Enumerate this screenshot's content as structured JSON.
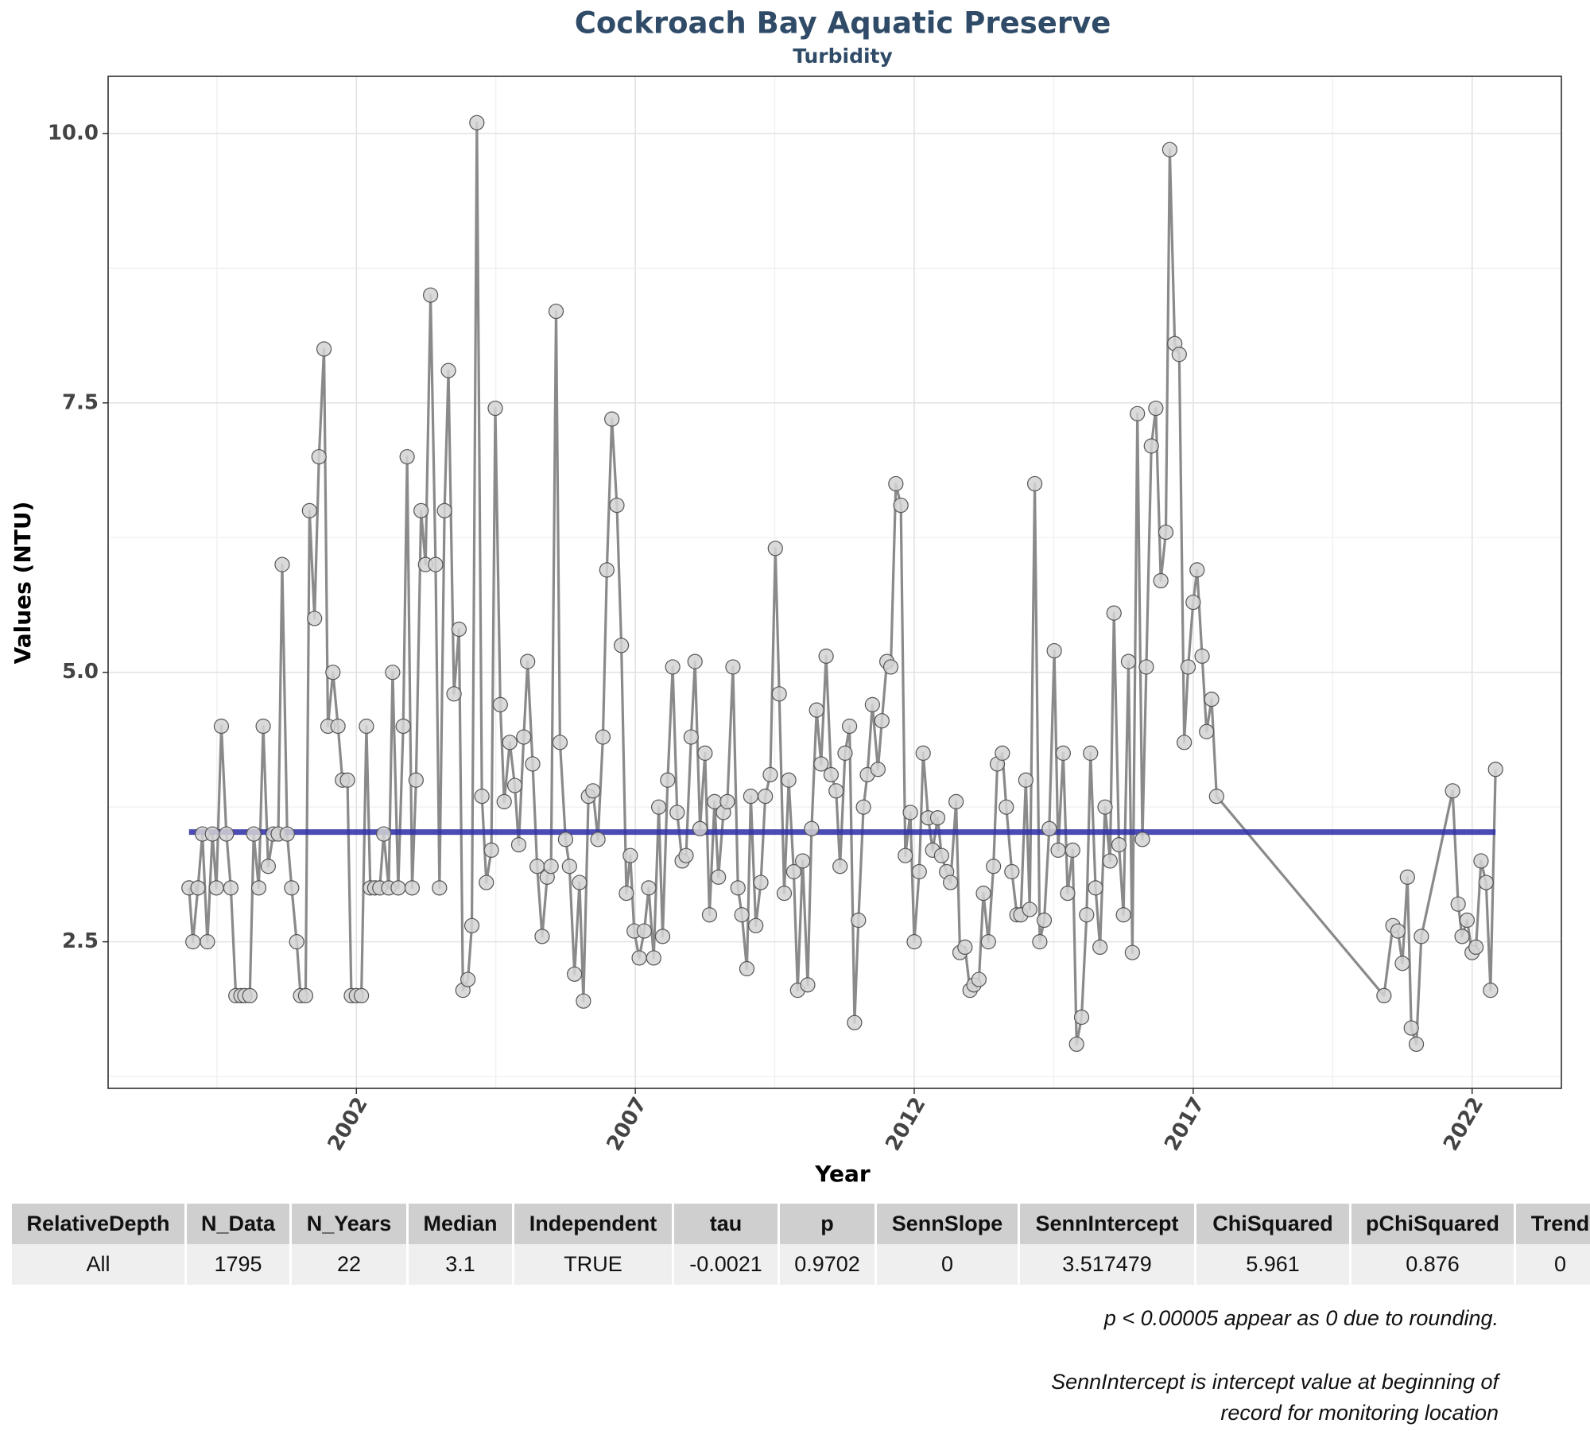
{
  "chart_data": {
    "type": "line",
    "title": "Cockroach Bay Aquatic Preserve",
    "subtitle": "Turbidity",
    "x_label": "Year",
    "y_label": "Values (NTU)",
    "xlim": [
      1997.55,
      2023.6
    ],
    "ylim": [
      1.14,
      10.53
    ],
    "xticks": [
      2002,
      2007,
      2012,
      2017,
      2022
    ],
    "yticks": [
      2.5,
      {
        "value": 5,
        "label": "5.0"
      },
      7.5,
      {
        "value": 10,
        "label": "10.0"
      }
    ],
    "grid": true,
    "line_color": "#8a8a8a",
    "point_color": "#d3d3d3",
    "trend_color": "#2b2ba8",
    "x": [
      1999.0,
      1999.07,
      1999.16,
      1999.24,
      1999.33,
      1999.42,
      1999.49,
      1999.58,
      1999.67,
      1999.75,
      1999.84,
      1999.93,
      2000.0,
      2000.09,
      2000.16,
      2000.25,
      2000.33,
      2000.42,
      2000.51,
      2000.6,
      2000.67,
      2000.76,
      2000.84,
      2000.93,
      2001.0,
      2001.09,
      2001.16,
      2001.25,
      2001.33,
      2001.42,
      2001.49,
      2001.58,
      2001.67,
      2001.75,
      2001.84,
      2001.91,
      2002.0,
      2002.09,
      2002.18,
      2002.25,
      2002.33,
      2002.42,
      2002.49,
      2002.58,
      2002.65,
      2002.75,
      2002.84,
      2002.91,
      2003.0,
      2003.07,
      2003.16,
      2003.24,
      2003.33,
      2003.42,
      2003.49,
      2003.58,
      2003.65,
      2003.75,
      2003.84,
      2003.91,
      2004.0,
      2004.07,
      2004.16,
      2004.25,
      2004.33,
      2004.42,
      2004.49,
      2004.58,
      2004.65,
      2004.75,
      2004.84,
      2004.91,
      2005.0,
      2005.07,
      2005.16,
      2005.24,
      2005.33,
      2005.42,
      2005.49,
      2005.58,
      2005.65,
      2005.75,
      2005.82,
      2005.91,
      2006.0,
      2006.07,
      2006.16,
      2006.24,
      2006.33,
      2006.42,
      2006.49,
      2006.58,
      2006.67,
      2006.75,
      2006.84,
      2006.91,
      2006.98,
      2007.07,
      2007.16,
      2007.24,
      2007.33,
      2007.42,
      2007.49,
      2007.58,
      2007.67,
      2007.75,
      2007.84,
      2007.91,
      2008.0,
      2008.07,
      2008.16,
      2008.25,
      2008.33,
      2008.42,
      2008.49,
      2008.58,
      2008.65,
      2008.75,
      2008.84,
      2008.91,
      2009.0,
      2009.07,
      2009.16,
      2009.25,
      2009.33,
      2009.42,
      2009.51,
      2009.58,
      2009.67,
      2009.75,
      2009.84,
      2009.91,
      2010.0,
      2010.09,
      2010.16,
      2010.25,
      2010.33,
      2010.42,
      2010.51,
      2010.6,
      2010.67,
      2010.76,
      2010.84,
      2010.93,
      2011.0,
      2011.09,
      2011.16,
      2011.25,
      2011.35,
      2011.42,
      2011.51,
      2011.58,
      2011.67,
      2011.76,
      2011.84,
      2011.93,
      2012.0,
      2012.09,
      2012.16,
      2012.25,
      2012.33,
      2012.42,
      2012.49,
      2012.58,
      2012.65,
      2012.75,
      2012.82,
      2012.91,
      2013.0,
      2013.07,
      2013.16,
      2013.24,
      2013.33,
      2013.42,
      2013.49,
      2013.58,
      2013.65,
      2013.75,
      2013.84,
      2013.91,
      2014.0,
      2014.07,
      2014.16,
      2014.25,
      2014.33,
      2014.42,
      2014.51,
      2014.58,
      2014.67,
      2014.75,
      2014.84,
      2014.91,
      2015.0,
      2015.09,
      2015.16,
      2015.25,
      2015.33,
      2015.42,
      2015.51,
      2015.58,
      2015.67,
      2015.75,
      2015.84,
      2015.91,
      2016.0,
      2016.09,
      2016.16,
      2016.25,
      2016.33,
      2016.42,
      2016.51,
      2016.58,
      2016.67,
      2016.75,
      2016.84,
      2016.91,
      2017.0,
      2017.07,
      2017.16,
      2017.24,
      2017.33,
      2017.42,
      2020.42,
      2020.58,
      2020.67,
      2020.75,
      2020.84,
      2020.91,
      2021.0,
      2021.09,
      2021.65,
      2021.75,
      2021.82,
      2021.91,
      2022.0,
      2022.07,
      2022.16,
      2022.25,
      2022.33,
      2022.42
    ],
    "values": [
      3.0,
      2.5,
      3.0,
      3.5,
      2.5,
      3.5,
      3.0,
      4.5,
      3.5,
      3.0,
      2.0,
      2.0,
      2.0,
      2.0,
      3.5,
      3.0,
      4.5,
      3.2,
      3.5,
      3.5,
      6.0,
      3.5,
      3.0,
      2.5,
      2.0,
      2.0,
      6.5,
      5.5,
      7.0,
      8.0,
      4.5,
      5.0,
      4.5,
      4.0,
      4.0,
      2.0,
      2.0,
      2.0,
      4.5,
      3.0,
      3.0,
      3.0,
      3.5,
      3.0,
      5.0,
      3.0,
      4.5,
      7.0,
      3.0,
      4.0,
      6.5,
      6.0,
      8.5,
      6.0,
      3.0,
      6.5,
      7.8,
      4.8,
      5.4,
      2.05,
      2.15,
      2.65,
      10.1,
      3.85,
      3.05,
      3.35,
      7.45,
      4.7,
      3.8,
      4.35,
      3.95,
      3.4,
      4.4,
      5.1,
      4.15,
      3.2,
      2.55,
      3.1,
      3.2,
      8.35,
      4.35,
      3.45,
      3.2,
      2.2,
      3.05,
      1.95,
      3.85,
      3.9,
      3.45,
      4.4,
      5.95,
      7.35,
      6.55,
      5.25,
      2.95,
      3.3,
      2.6,
      2.35,
      2.6,
      3.0,
      2.35,
      3.75,
      2.55,
      4.0,
      5.05,
      3.7,
      3.25,
      3.3,
      4.4,
      5.1,
      3.55,
      4.25,
      2.75,
      3.8,
      3.1,
      3.7,
      3.8,
      5.05,
      3.0,
      2.75,
      2.25,
      3.85,
      2.65,
      3.05,
      3.85,
      4.05,
      6.15,
      4.8,
      2.95,
      4.0,
      3.15,
      2.05,
      3.25,
      2.1,
      3.55,
      4.65,
      4.15,
      5.15,
      4.05,
      3.9,
      3.2,
      4.25,
      4.5,
      1.75,
      2.7,
      3.75,
      4.05,
      4.7,
      4.1,
      4.55,
      5.1,
      5.05,
      6.75,
      6.55,
      3.3,
      3.7,
      2.5,
      3.15,
      4.25,
      3.65,
      3.35,
      3.65,
      3.3,
      3.15,
      3.05,
      3.8,
      2.4,
      2.45,
      2.05,
      2.1,
      2.15,
      2.95,
      2.5,
      3.2,
      4.15,
      4.25,
      3.75,
      3.15,
      2.75,
      2.75,
      4.0,
      2.8,
      6.75,
      2.5,
      2.7,
      3.55,
      5.2,
      3.35,
      4.25,
      2.95,
      3.35,
      1.55,
      1.8,
      2.75,
      4.25,
      3.0,
      2.45,
      3.75,
      3.25,
      5.55,
      3.4,
      2.75,
      5.1,
      2.4,
      7.4,
      3.45,
      5.05,
      7.1,
      7.45,
      5.85,
      6.3,
      9.85,
      8.05,
      7.95,
      4.35,
      5.05,
      5.65,
      5.95,
      5.15,
      4.45,
      4.75,
      3.85,
      2.0,
      2.65,
      2.6,
      2.3,
      3.1,
      1.7,
      1.55,
      2.55,
      3.9,
      2.85,
      2.55,
      2.7,
      2.4,
      2.45,
      3.25,
      3.05,
      2.05,
      4.1
    ]
  },
  "table": {
    "columns": [
      "RelativeDepth",
      "N_Data",
      "N_Years",
      "Median",
      "Independent",
      "tau",
      "p",
      "SennSlope",
      "SennIntercept",
      "ChiSquared",
      "pChiSquared",
      "Trend"
    ],
    "rows": [
      [
        "All",
        1795,
        22,
        3.1,
        "TRUE",
        -0.0021,
        0.9702,
        0,
        3.517479,
        5.961,
        0.876,
        0
      ]
    ]
  },
  "notes": [
    "p < 0.00005 appear as 0 due to rounding.",
    "SennIntercept is intercept value at beginning of",
    "record for monitoring location"
  ]
}
